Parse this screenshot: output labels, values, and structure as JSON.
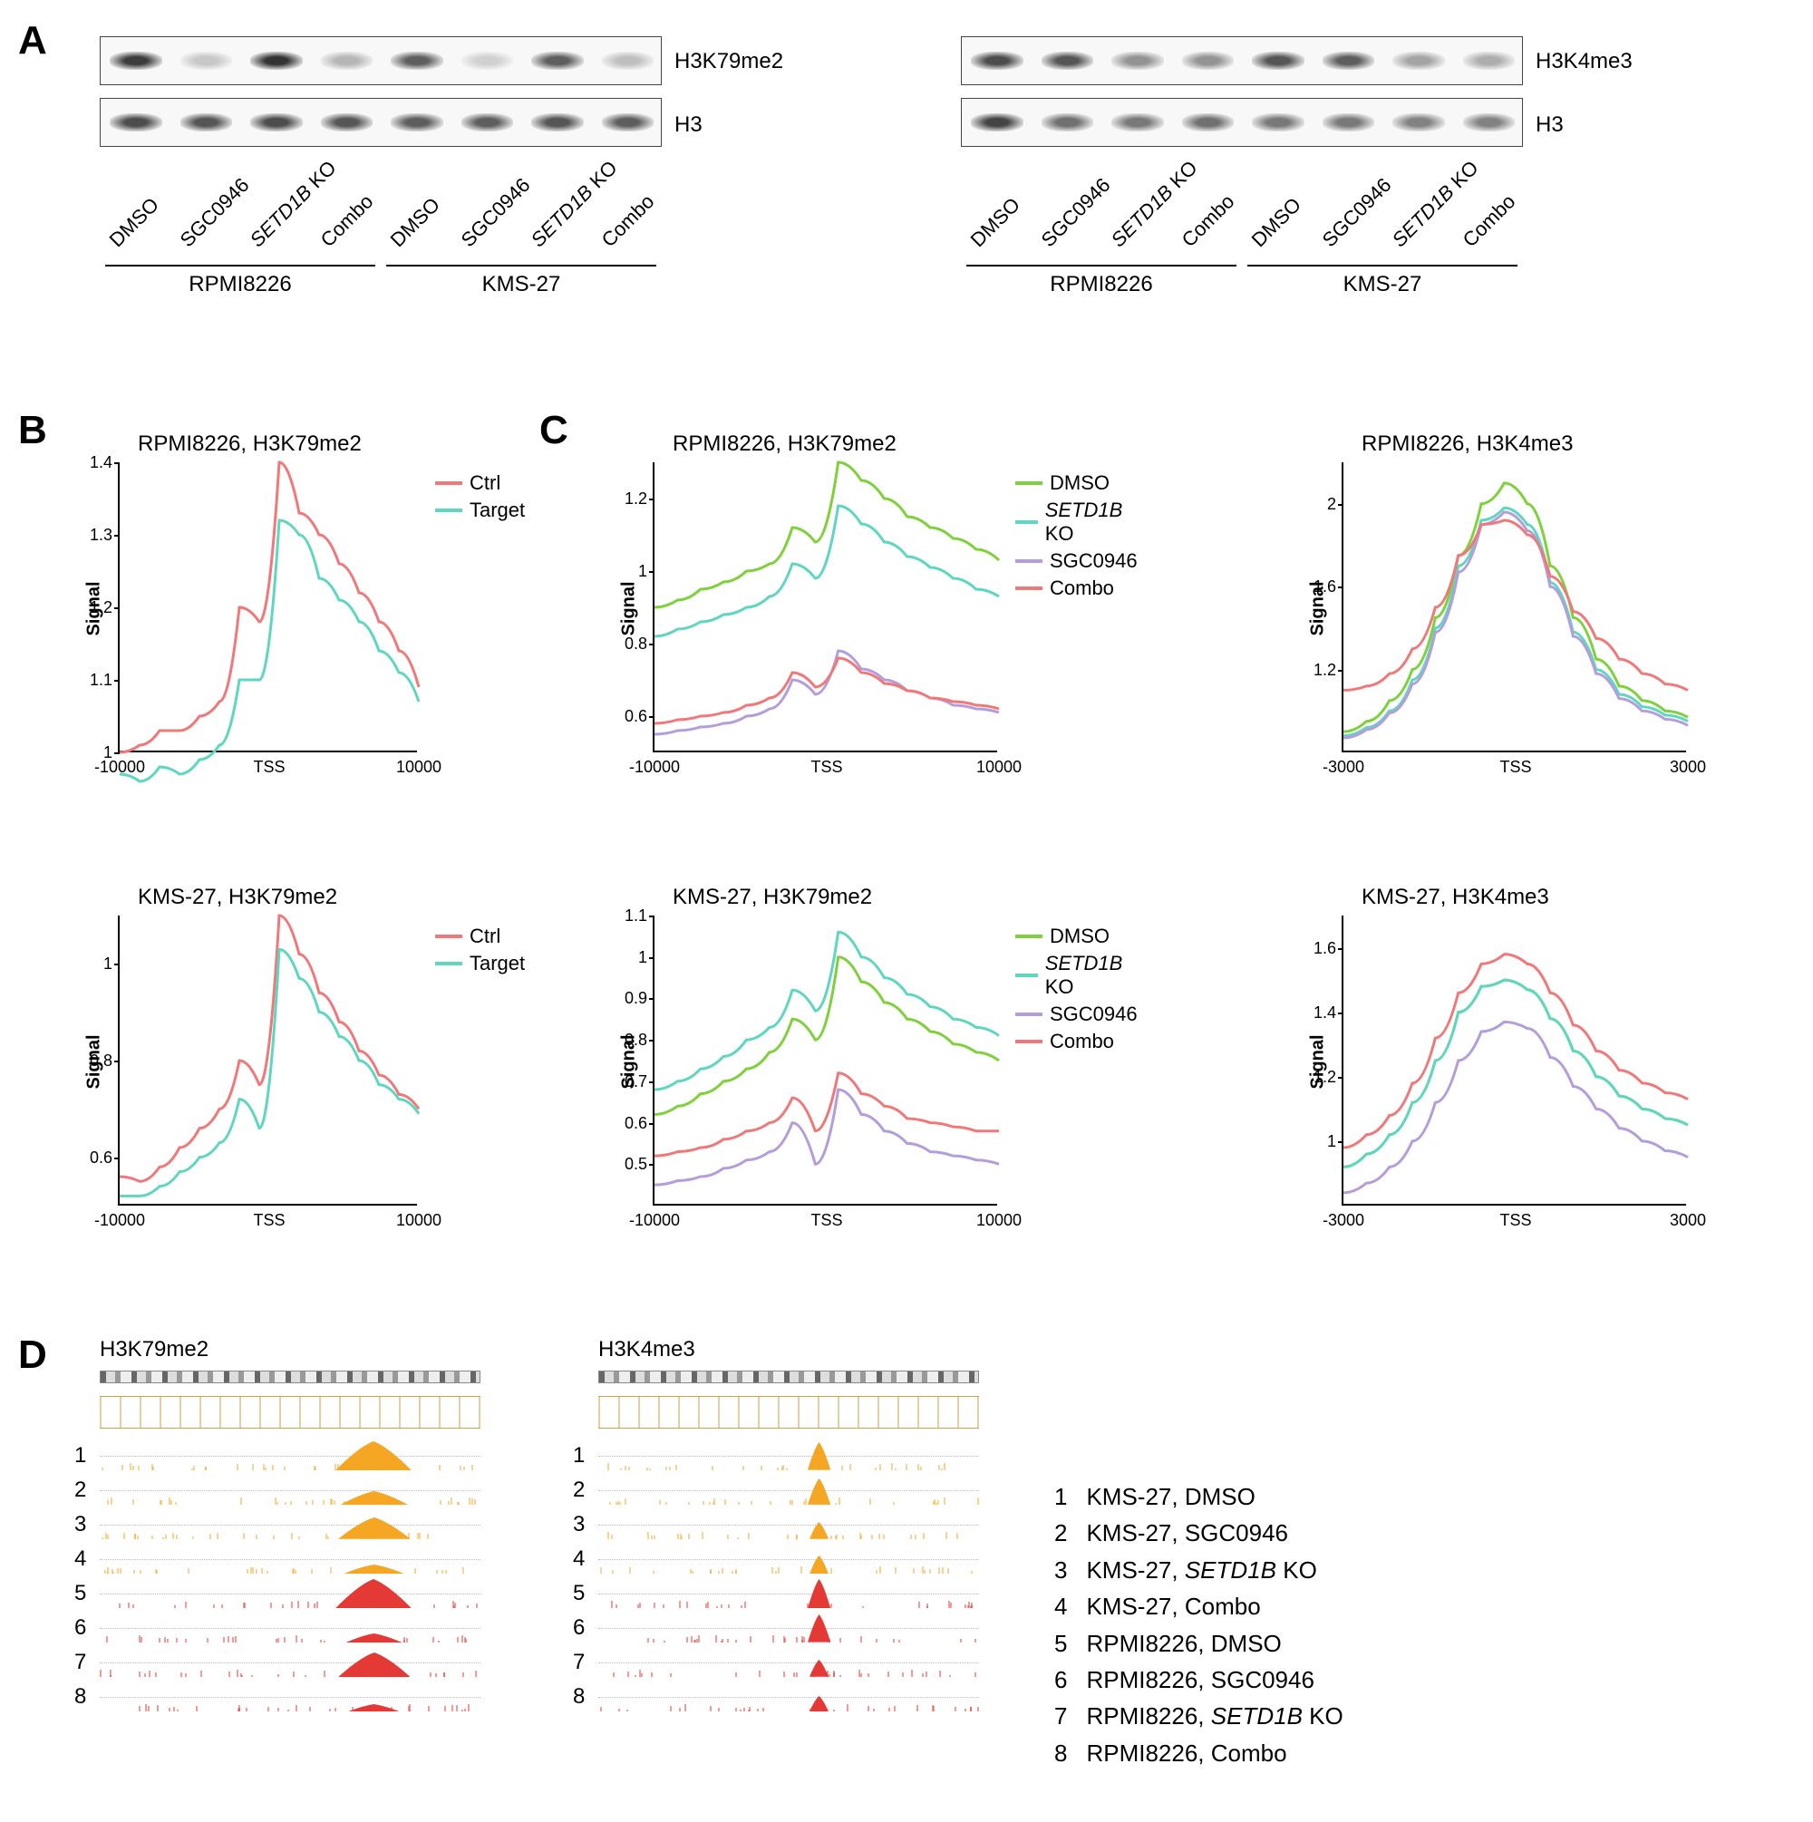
{
  "colors": {
    "ctrl": "#f07878",
    "target": "#5fd6c0",
    "dmso": "#7fd13b",
    "setd1bko": "#5fd6c0",
    "sgc": "#b39ddb",
    "combo": "#f07878",
    "track_kms": "#f5a623",
    "track_rpmi": "#e53935"
  },
  "panelA": {
    "left": {
      "top_label": "H3K79me2",
      "bot_label": "H3",
      "lanes": [
        "DMSO",
        "SGC0946",
        "SETD1B KO",
        "Combo",
        "DMSO",
        "SGC0946",
        "SETD1B KO",
        "Combo"
      ],
      "cell_lines": [
        "RPMI8226",
        "KMS-27"
      ],
      "top_intensity": [
        0.9,
        0.1,
        0.95,
        0.2,
        0.7,
        0.05,
        0.7,
        0.15
      ],
      "bot_intensity": [
        0.8,
        0.75,
        0.8,
        0.75,
        0.7,
        0.7,
        0.75,
        0.7
      ]
    },
    "right": {
      "top_label": "H3K4me3",
      "bot_label": "H3",
      "lanes": [
        "DMSO",
        "SGC0946",
        "SETD1B KO",
        "Combo",
        "DMSO",
        "SGC0946",
        "SETD1B KO",
        "Combo"
      ],
      "cell_lines": [
        "RPMI8226",
        "KMS-27"
      ],
      "top_intensity": [
        0.8,
        0.75,
        0.4,
        0.4,
        0.75,
        0.7,
        0.3,
        0.25
      ],
      "bot_intensity": [
        0.85,
        0.6,
        0.55,
        0.6,
        0.55,
        0.55,
        0.5,
        0.5
      ]
    }
  },
  "panelB": {
    "plots": [
      {
        "title": "RPMI8226, H3K79me2",
        "xlim": [
          -10000,
          10000
        ],
        "xticks": [
          -10000,
          "TSS",
          10000
        ],
        "ylim": [
          1.0,
          1.4
        ],
        "yticks": [
          1.0,
          1.1,
          1.2,
          1.3,
          1.4
        ],
        "series": [
          {
            "key": "ctrl",
            "label": "Ctrl",
            "y": [
              1.0,
              1.01,
              1.03,
              1.03,
              1.05,
              1.07,
              1.2,
              1.18,
              1.4,
              1.33,
              1.3,
              1.26,
              1.22,
              1.18,
              1.14,
              1.09
            ]
          },
          {
            "key": "target",
            "label": "Target",
            "y": [
              0.97,
              0.96,
              0.98,
              0.97,
              0.99,
              1.01,
              1.1,
              1.1,
              1.32,
              1.3,
              1.24,
              1.21,
              1.18,
              1.14,
              1.11,
              1.07
            ]
          }
        ]
      },
      {
        "title": "KMS-27, H3K79me2",
        "xlim": [
          -10000,
          10000
        ],
        "xticks": [
          -10000,
          "TSS",
          10000
        ],
        "ylim": [
          0.5,
          1.1
        ],
        "yticks": [
          0.6,
          0.8,
          1.0
        ],
        "series": [
          {
            "key": "ctrl",
            "label": "Ctrl",
            "y": [
              0.56,
              0.55,
              0.58,
              0.62,
              0.66,
              0.7,
              0.8,
              0.75,
              1.1,
              1.02,
              0.94,
              0.88,
              0.82,
              0.77,
              0.73,
              0.7
            ]
          },
          {
            "key": "target",
            "label": "Target",
            "y": [
              0.52,
              0.52,
              0.54,
              0.57,
              0.6,
              0.63,
              0.72,
              0.66,
              1.03,
              0.97,
              0.9,
              0.85,
              0.8,
              0.75,
              0.72,
              0.69
            ]
          }
        ]
      }
    ]
  },
  "panelC": {
    "plots": [
      {
        "title": "RPMI8226, H3K79me2",
        "xlim": [
          -10000,
          10000
        ],
        "xticks": [
          -10000,
          "TSS",
          10000
        ],
        "ylim": [
          0.5,
          1.3
        ],
        "yticks": [
          0.6,
          0.8,
          1.0,
          1.2
        ],
        "legend": true,
        "series": [
          {
            "key": "dmso",
            "label": "DMSO",
            "y": [
              0.9,
              0.92,
              0.95,
              0.97,
              1.0,
              1.02,
              1.12,
              1.08,
              1.3,
              1.25,
              1.2,
              1.15,
              1.12,
              1.09,
              1.06,
              1.03
            ]
          },
          {
            "key": "setd1bko",
            "label": "SETD1B KO",
            "y": [
              0.82,
              0.84,
              0.86,
              0.88,
              0.9,
              0.93,
              1.02,
              0.98,
              1.18,
              1.13,
              1.08,
              1.04,
              1.01,
              0.98,
              0.95,
              0.93
            ]
          },
          {
            "key": "sgc",
            "label": "SGC0946",
            "y": [
              0.55,
              0.56,
              0.57,
              0.58,
              0.6,
              0.62,
              0.7,
              0.66,
              0.78,
              0.73,
              0.7,
              0.67,
              0.65,
              0.63,
              0.62,
              0.61
            ]
          },
          {
            "key": "combo",
            "label": "Combo",
            "y": [
              0.58,
              0.59,
              0.6,
              0.61,
              0.63,
              0.65,
              0.72,
              0.68,
              0.76,
              0.72,
              0.69,
              0.67,
              0.65,
              0.64,
              0.63,
              0.62
            ]
          }
        ]
      },
      {
        "title": "RPMI8226, H3K4me3",
        "xlim": [
          -3000,
          3000
        ],
        "xticks": [
          -3000,
          "TSS",
          3000
        ],
        "ylim": [
          0.8,
          2.2
        ],
        "yticks": [
          1.2,
          1.6,
          2.0
        ],
        "series": [
          {
            "key": "dmso",
            "y": [
              0.9,
              0.95,
              1.05,
              1.2,
              1.45,
              1.75,
              2.0,
              2.1,
              2.0,
              1.7,
              1.45,
              1.25,
              1.12,
              1.05,
              1.0,
              0.97
            ]
          },
          {
            "key": "setd1bko",
            "y": [
              0.88,
              0.92,
              1.0,
              1.15,
              1.4,
              1.7,
              1.92,
              1.98,
              1.9,
              1.62,
              1.38,
              1.2,
              1.08,
              1.02,
              0.98,
              0.95
            ]
          },
          {
            "key": "sgc",
            "y": [
              0.87,
              0.91,
              0.99,
              1.13,
              1.38,
              1.67,
              1.9,
              1.96,
              1.87,
              1.6,
              1.36,
              1.18,
              1.06,
              1.0,
              0.96,
              0.93
            ]
          },
          {
            "key": "combo",
            "y": [
              1.1,
              1.12,
              1.18,
              1.3,
              1.5,
              1.75,
              1.9,
              1.92,
              1.85,
              1.65,
              1.48,
              1.35,
              1.25,
              1.18,
              1.13,
              1.1
            ]
          }
        ]
      },
      {
        "title": "KMS-27, H3K79me2",
        "xlim": [
          -10000,
          10000
        ],
        "xticks": [
          -10000,
          "TSS",
          10000
        ],
        "ylim": [
          0.4,
          1.1
        ],
        "yticks": [
          0.5,
          0.6,
          0.7,
          0.8,
          0.9,
          1.0,
          1.1
        ],
        "legend": true,
        "series": [
          {
            "key": "dmso",
            "label": "DMSO",
            "y": [
              0.62,
              0.64,
              0.67,
              0.7,
              0.73,
              0.77,
              0.85,
              0.8,
              1.0,
              0.94,
              0.89,
              0.85,
              0.82,
              0.79,
              0.77,
              0.75
            ]
          },
          {
            "key": "setd1bko",
            "label": "SETD1B KO",
            "y": [
              0.68,
              0.7,
              0.73,
              0.76,
              0.8,
              0.83,
              0.92,
              0.87,
              1.06,
              1.0,
              0.95,
              0.91,
              0.88,
              0.85,
              0.83,
              0.81
            ]
          },
          {
            "key": "sgc",
            "label": "SGC0946",
            "y": [
              0.45,
              0.46,
              0.47,
              0.49,
              0.51,
              0.53,
              0.6,
              0.5,
              0.68,
              0.62,
              0.58,
              0.55,
              0.53,
              0.52,
              0.51,
              0.5
            ]
          },
          {
            "key": "combo",
            "label": "Combo",
            "y": [
              0.52,
              0.53,
              0.54,
              0.56,
              0.58,
              0.6,
              0.66,
              0.58,
              0.72,
              0.67,
              0.64,
              0.61,
              0.6,
              0.59,
              0.58,
              0.58
            ]
          }
        ]
      },
      {
        "title": "KMS-27, H3K4me3",
        "xlim": [
          -3000,
          3000
        ],
        "xticks": [
          -3000,
          "TSS",
          3000
        ],
        "ylim": [
          0.8,
          1.7
        ],
        "yticks": [
          1.0,
          1.2,
          1.4,
          1.6
        ],
        "series": [
          {
            "key": "dmso",
            "y": [
              0.92,
              0.96,
              1.02,
              1.12,
              1.25,
              1.4,
              1.48,
              1.5,
              1.47,
              1.38,
              1.28,
              1.2,
              1.14,
              1.1,
              1.07,
              1.05
            ]
          },
          {
            "key": "setd1bko",
            "y": [
              0.92,
              0.96,
              1.02,
              1.12,
              1.25,
              1.4,
              1.48,
              1.5,
              1.47,
              1.38,
              1.28,
              1.2,
              1.14,
              1.1,
              1.07,
              1.05
            ]
          },
          {
            "key": "sgc",
            "y": [
              0.84,
              0.87,
              0.92,
              1.0,
              1.12,
              1.25,
              1.34,
              1.37,
              1.35,
              1.26,
              1.17,
              1.1,
              1.04,
              1.0,
              0.97,
              0.95
            ]
          },
          {
            "key": "combo",
            "y": [
              0.98,
              1.02,
              1.08,
              1.18,
              1.32,
              1.46,
              1.55,
              1.58,
              1.55,
              1.46,
              1.36,
              1.28,
              1.22,
              1.18,
              1.15,
              1.13
            ]
          }
        ]
      }
    ]
  },
  "panelD": {
    "tracks_left_label": "H3K79me2",
    "tracks_right_label": "H3K4me3",
    "key": [
      "KMS-27, DMSO",
      "KMS-27, SGC0946",
      "KMS-27, SETD1B KO",
      "KMS-27, Combo",
      "RPMI8226, DMSO",
      "RPMI8226, SGC0946",
      "RPMI8226, SETD1B KO",
      "RPMI8226, Combo"
    ],
    "left_peaks": [
      {
        "x": 0.72,
        "h": 0.95,
        "w": 0.2
      },
      {
        "x": 0.72,
        "h": 0.45,
        "w": 0.18
      },
      {
        "x": 0.72,
        "h": 0.7,
        "w": 0.19
      },
      {
        "x": 0.72,
        "h": 0.3,
        "w": 0.16
      },
      {
        "x": 0.72,
        "h": 0.95,
        "w": 0.2
      },
      {
        "x": 0.72,
        "h": 0.3,
        "w": 0.15
      },
      {
        "x": 0.72,
        "h": 0.8,
        "w": 0.19
      },
      {
        "x": 0.72,
        "h": 0.25,
        "w": 0.14
      }
    ],
    "right_peaks": [
      {
        "x": 0.58,
        "h": 0.9,
        "w": 0.06
      },
      {
        "x": 0.58,
        "h": 0.85,
        "w": 0.06
      },
      {
        "x": 0.58,
        "h": 0.55,
        "w": 0.05
      },
      {
        "x": 0.58,
        "h": 0.6,
        "w": 0.05
      },
      {
        "x": 0.58,
        "h": 0.95,
        "w": 0.06
      },
      {
        "x": 0.58,
        "h": 0.9,
        "w": 0.06
      },
      {
        "x": 0.58,
        "h": 0.55,
        "w": 0.05
      },
      {
        "x": 0.58,
        "h": 0.5,
        "w": 0.05
      }
    ]
  },
  "labels": {
    "signal": "Signal",
    "A": "A",
    "B": "B",
    "C": "C",
    "D": "D"
  }
}
